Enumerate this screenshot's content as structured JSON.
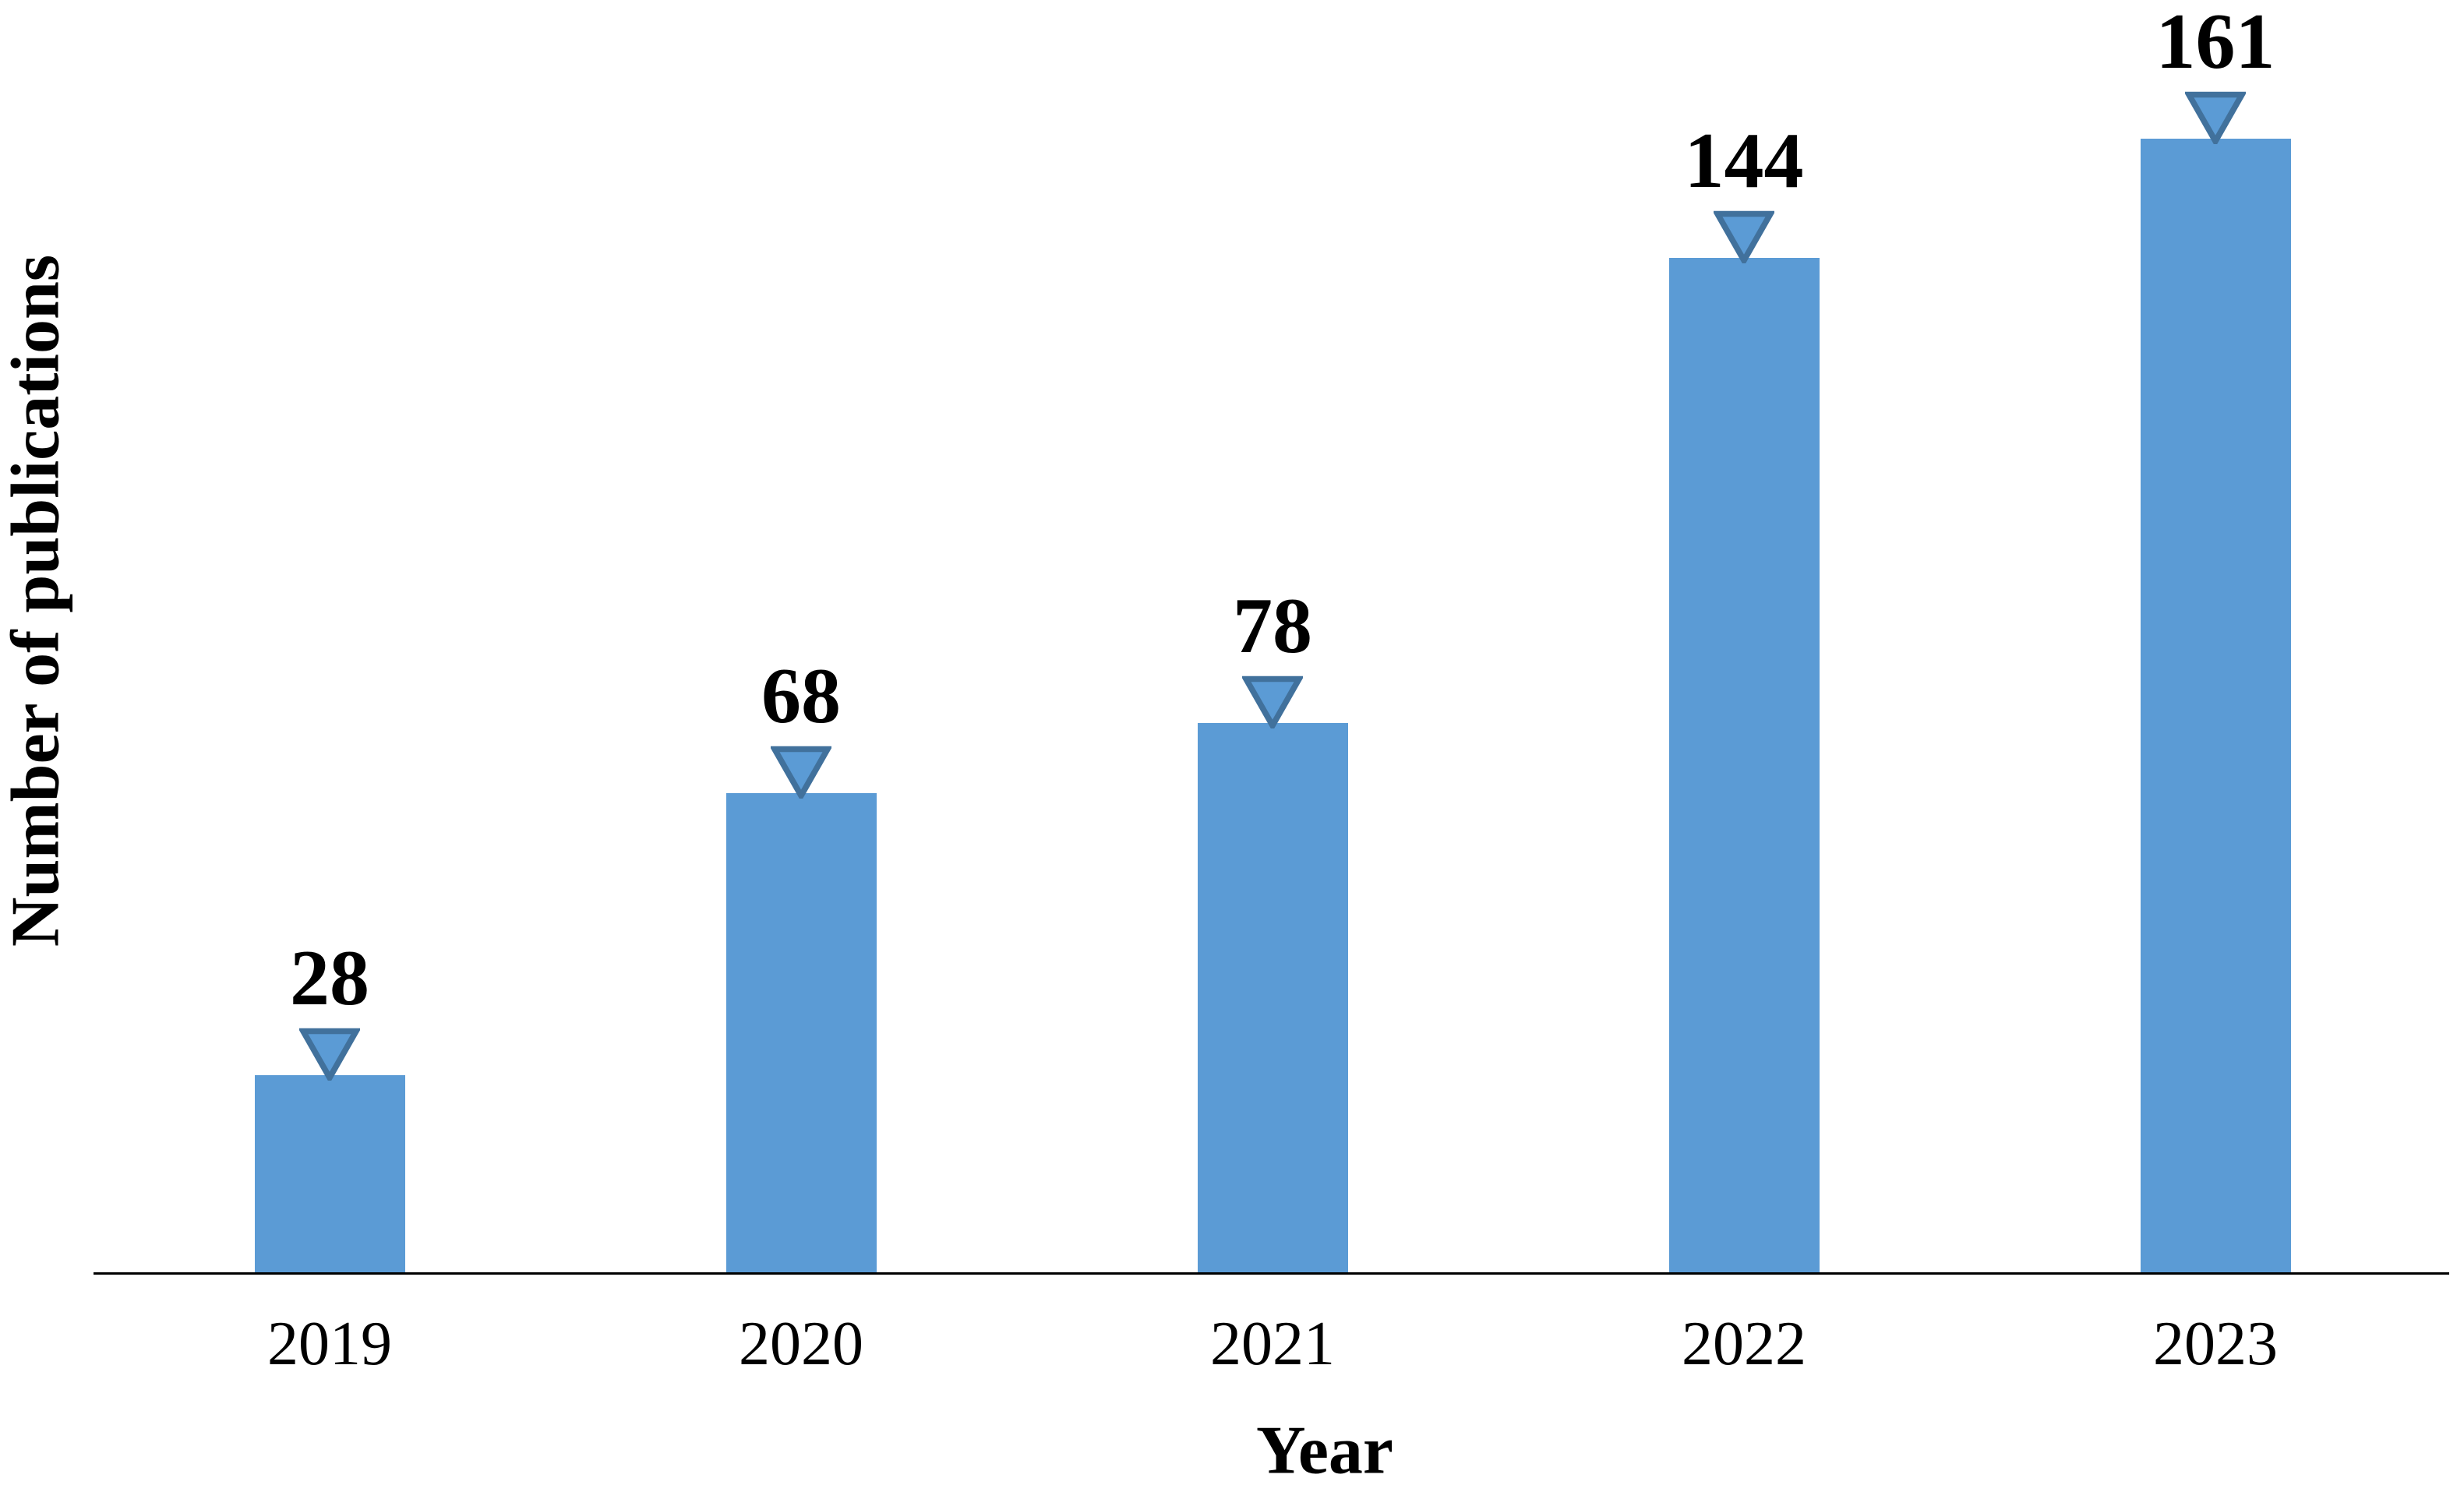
{
  "chart_data": {
    "type": "bar",
    "categories": [
      "2019",
      "2020",
      "2021",
      "2022",
      "2023"
    ],
    "values": [
      28,
      68,
      78,
      144,
      161
    ],
    "data_labels_shown": true,
    "title": "",
    "xlabel": "Year",
    "ylabel": "Number of publications",
    "ylim": [
      0,
      180
    ],
    "y_axis_ticks_visible": false,
    "grid": false,
    "legend": "none",
    "marker_shape": "triangle-down",
    "colors": {
      "bar_fill": "#5B9BD5",
      "marker_fill": "#5B9BD5",
      "marker_border": "#41719C",
      "axis_line": "#000000",
      "text": "#000000",
      "background": "#ffffff"
    }
  }
}
